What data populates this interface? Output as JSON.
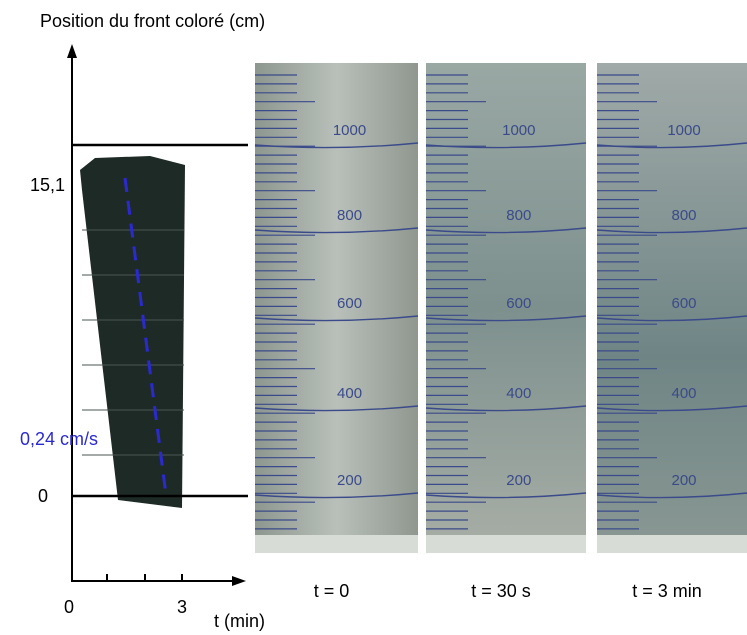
{
  "plot": {
    "y_axis_label": "Position du front coloré (cm)",
    "y_ticks": [
      "15,1",
      "0"
    ],
    "x_ticks": [
      "0",
      "3"
    ],
    "x_axis_label": "t (min)",
    "annotation": "0,24 cm/s"
  },
  "photos": [
    {
      "caption": "t = 0",
      "graduations": [
        1000,
        800,
        600,
        400,
        200
      ]
    },
    {
      "caption": "t = 30 s",
      "graduations": [
        1000,
        800,
        600,
        400,
        200
      ]
    },
    {
      "caption": "t = 3 min",
      "graduations": [
        1000,
        800,
        600,
        400,
        200
      ]
    }
  ]
}
